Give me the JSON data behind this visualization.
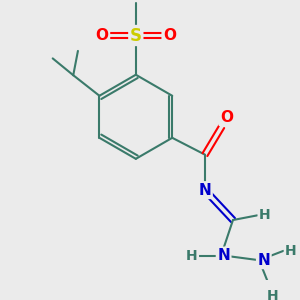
{
  "background_color": "#ebebeb",
  "bond_color": "#3a7a6a",
  "bond_width": 1.5,
  "atom_colors": {
    "S": "#cccc00",
    "O": "#ff0000",
    "N": "#0000cc",
    "C": "#3a7a6a",
    "H": "#3a7a6a"
  },
  "figsize": [
    3.0,
    3.0
  ],
  "dpi": 100
}
